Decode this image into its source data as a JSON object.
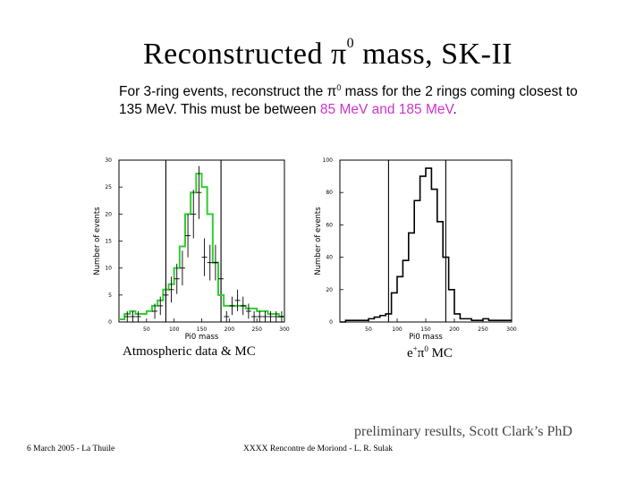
{
  "slide": {
    "title_pre": "Reconstructed ",
    "title_pi": "π",
    "title_sup": "0",
    "title_post": " mass, SK-II",
    "subtitle_a": "For 3-ring events, reconstruct the ",
    "subtitle_pi": "π",
    "subtitle_sup": "0",
    "subtitle_b": " mass for the 2 rings coming closest to 135 MeV.  This must be between ",
    "subtitle_range": "85 MeV and 185 MeV",
    "subtitle_end": ".",
    "caption_left": "Atmospheric data & MC",
    "caption_right_e": "e",
    "caption_right_sup1": "+",
    "caption_right_pi": "π",
    "caption_right_sup2": "0",
    "caption_right_rest": " MC",
    "note": "preliminary results, Scott Clark’s PhD",
    "footer_left": "6 March 2005 - La Thuile",
    "footer_center": "XXXX Rencontre de Moriond - L. R. Sulak"
  },
  "colors": {
    "mc_line": "#33cc33",
    "highlight": "#cc33cc"
  },
  "chart_data": [
    {
      "type": "line",
      "xlabel": "Pi0 mass",
      "ylabel": "Number of events",
      "xlim": [
        0,
        300
      ],
      "ylim": [
        0,
        30
      ],
      "xticks": [
        "50",
        "100",
        "150",
        "200",
        "250",
        "300"
      ],
      "xtick_values": [
        50,
        100,
        150,
        200,
        250,
        300
      ],
      "yticks": [
        "0",
        "5",
        "10",
        "15",
        "20",
        "25",
        "30"
      ],
      "ytick_values": [
        0,
        5,
        10,
        15,
        20,
        25,
        30
      ],
      "cut_lines": [
        85,
        185
      ],
      "series": [
        {
          "kind": "mc_histogram",
          "bin_width": 10,
          "bin_starts": [
            0,
            10,
            20,
            30,
            40,
            50,
            60,
            70,
            80,
            90,
            100,
            110,
            120,
            130,
            140,
            150,
            160,
            170,
            180,
            190,
            200,
            210,
            220,
            230,
            240,
            250,
            260,
            270,
            280,
            290
          ],
          "values": [
            0.5,
            1.5,
            2,
            1.5,
            1.5,
            2,
            3,
            4,
            6,
            7,
            10,
            14,
            20,
            24,
            27.5,
            25,
            20,
            11,
            5,
            3,
            3,
            3,
            3,
            2.5,
            2.5,
            2,
            2,
            1.5,
            1.5,
            1
          ]
        },
        {
          "kind": "data_points",
          "x": [
            15,
            25,
            35,
            65,
            75,
            85,
            95,
            105,
            115,
            125,
            135,
            145,
            155,
            165,
            175,
            185,
            195,
            205,
            215,
            225,
            235,
            245,
            255,
            265,
            275,
            285,
            295
          ],
          "y": [
            1,
            1,
            1,
            2,
            3,
            5,
            6,
            8,
            10,
            16,
            20,
            24,
            12,
            11,
            11,
            8,
            1,
            3,
            4,
            3,
            2,
            1,
            1,
            1,
            1,
            1,
            1
          ],
          "err": [
            1,
            1,
            1,
            1.4,
            1.7,
            2.2,
            2.4,
            2.8,
            3.2,
            4,
            4.5,
            4.9,
            3.5,
            3.3,
            3.3,
            2.8,
            1,
            1.7,
            2,
            1.7,
            1.4,
            1,
            1,
            1,
            1,
            1,
            1
          ]
        }
      ]
    },
    {
      "type": "line",
      "xlabel": "Pi0 mass",
      "ylabel": "Number of events",
      "xlim": [
        0,
        300
      ],
      "ylim": [
        0,
        100
      ],
      "xticks": [
        "50",
        "100",
        "150",
        "200",
        "250",
        "300"
      ],
      "xtick_values": [
        50,
        100,
        150,
        200,
        250,
        300
      ],
      "yticks": [
        "0",
        "20",
        "40",
        "60",
        "80",
        "100"
      ],
      "ytick_values": [
        0,
        20,
        40,
        60,
        80,
        100
      ],
      "cut_lines": [
        85,
        185
      ],
      "series": [
        {
          "kind": "mc_histogram",
          "bin_width": 10,
          "bin_starts": [
            0,
            10,
            20,
            30,
            40,
            50,
            60,
            70,
            80,
            90,
            100,
            110,
            120,
            130,
            140,
            150,
            160,
            170,
            180,
            190,
            200,
            210,
            220,
            230,
            240,
            250,
            260,
            270,
            280,
            290
          ],
          "values": [
            0,
            1,
            1,
            1,
            1,
            2,
            3,
            4,
            5,
            18,
            28,
            38,
            55,
            75,
            90,
            95,
            82,
            62,
            40,
            20,
            5,
            2,
            2,
            1,
            1,
            2,
            1,
            1,
            1,
            1
          ]
        }
      ]
    }
  ]
}
